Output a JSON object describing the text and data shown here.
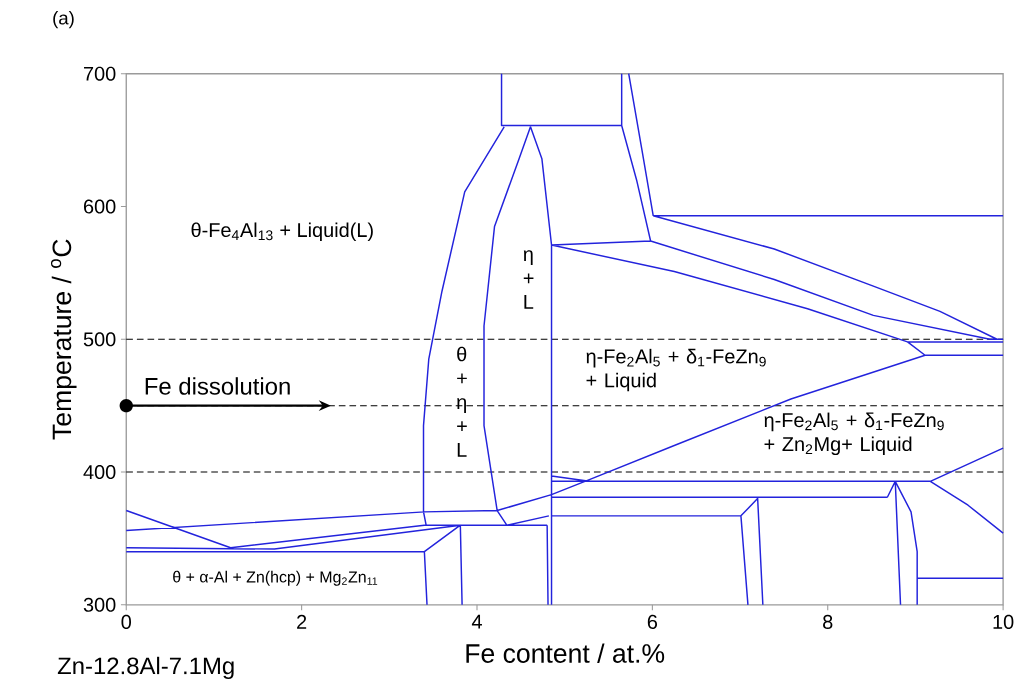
{
  "chart_data": {
    "type": "line",
    "color": "#2323dc",
    "xlabel": "Fe content / at.%",
    "ylabel": "Temperature / $^{o}$C",
    "xlim": [
      0,
      10
    ],
    "ylim": [
      300,
      700
    ],
    "xticks": [
      0,
      2,
      4,
      6,
      8,
      10
    ],
    "yticks": [
      300,
      400,
      500,
      600,
      700
    ],
    "series": [
      {
        "x": [
          4.28,
          4.28,
          5.65,
          5.65,
          null,
          5.65,
          5.82,
          5.98,
          null,
          5.73,
          5.88,
          6.01,
          null,
          6.01,
          10,
          null,
          4.85,
          5.98,
          null,
          4.31,
          3.86,
          3.6,
          3.45,
          3.39,
          3.39,
          3.42,
          null,
          4.61,
          4.48,
          4.2,
          4.08,
          4.08,
          4.23,
          4.34,
          null,
          4.61,
          4.74,
          4.85,
          4.85,
          null,
          4.85,
          6.25,
          7.77,
          8.91,
          9.11,
          null,
          9.11,
          10,
          null,
          6.01,
          7.39,
          8.52,
          9.28,
          9.93,
          10,
          null,
          5.98,
          7.39,
          8.52,
          9.85,
          10,
          null,
          8.91,
          10,
          null,
          0,
          3.4,
          4.23,
          4.85,
          5.31,
          6.25,
          7.58,
          9.11,
          null,
          0,
          1.19,
          3.4,
          null,
          0,
          1.69,
          3.81,
          null,
          0,
          3.4,
          3.81,
          null,
          3.4,
          3.43,
          null,
          3.4,
          4.8,
          null,
          3.39,
          4.23,
          null,
          3.81,
          3.83,
          null,
          4.34,
          4.82,
          null,
          4.8,
          4.81,
          null,
          4.85,
          9.17,
          null,
          4.85,
          5.28,
          null,
          4.85,
          8.68,
          null,
          4.85,
          7.01,
          7.2,
          null,
          7.01,
          7.09,
          null,
          7.2,
          7.26,
          null,
          8.68,
          8.77,
          8.83,
          null,
          8.77,
          8.95,
          9.02,
          9.02,
          null,
          9.02,
          10,
          null,
          9.17,
          9.6,
          10,
          null,
          9.17,
          10
        ],
        "values": [
          700,
          661,
          661,
          700,
          null,
          661,
          620,
          574,
          null,
          700,
          643,
          593,
          null,
          593,
          593,
          null,
          571,
          574,
          null,
          660,
          611,
          536,
          485,
          435,
          370,
          360,
          null,
          660,
          636,
          585,
          510,
          435,
          371,
          360,
          null,
          660,
          636,
          571,
          300,
          null,
          571,
          551,
          523,
          498,
          488,
          null,
          488,
          488,
          null,
          593,
          568,
          540,
          521,
          500,
          500,
          null,
          574,
          545,
          518,
          500,
          500,
          null,
          498,
          498,
          null,
          356,
          370,
          371,
          383,
          395,
          420,
          455,
          488,
          null,
          371,
          343,
          360,
          null,
          343,
          342,
          360,
          null,
          340,
          340,
          360,
          null,
          340,
          300,
          null,
          360,
          360,
          null,
          370,
          371,
          null,
          360,
          300,
          null,
          360,
          367,
          null,
          360,
          300,
          null,
          393,
          393,
          null,
          397,
          393,
          null,
          381,
          381,
          null,
          367,
          367,
          380,
          null,
          367,
          300,
          null,
          381,
          300,
          null,
          381,
          393,
          300,
          null,
          393,
          370,
          340,
          300,
          null,
          320,
          320,
          null,
          393,
          375,
          354,
          null,
          393,
          418
        ]
      }
    ],
    "ref_lines": [
      {
        "axis": "y",
        "value": 500,
        "color": "#000000",
        "line_style": "dashed"
      },
      {
        "axis": "y",
        "value": 450,
        "color": "#000000",
        "line_style": "dashed"
      },
      {
        "axis": "y",
        "value": 400,
        "color": "#000000",
        "line_style": "dashed"
      }
    ],
    "annotations": [
      "(a)",
      "θ-Fe$_{4}$Al$_{13}$ + Liquid(L)",
      "η + L",
      "θ + η + L",
      "η-Fe$_{2}$Al$_{5}$ + δ$_{1}$-FeZn$_{9}$ + Liquid",
      "η-Fe$_{2}$Al$_{5}$ + δ$_{1}$-FeZn$_{9}$ + Zn$_{2}$Mg+ Liquid",
      "θ + α-Al + Zn(hcp) + Mg$_{2}$Zn$_{11}$",
      {
        "text": "Fe dissolution",
        "x": 0,
        "y": 450
      },
      "Zn-12.8Al-7.1Mg"
    ]
  }
}
